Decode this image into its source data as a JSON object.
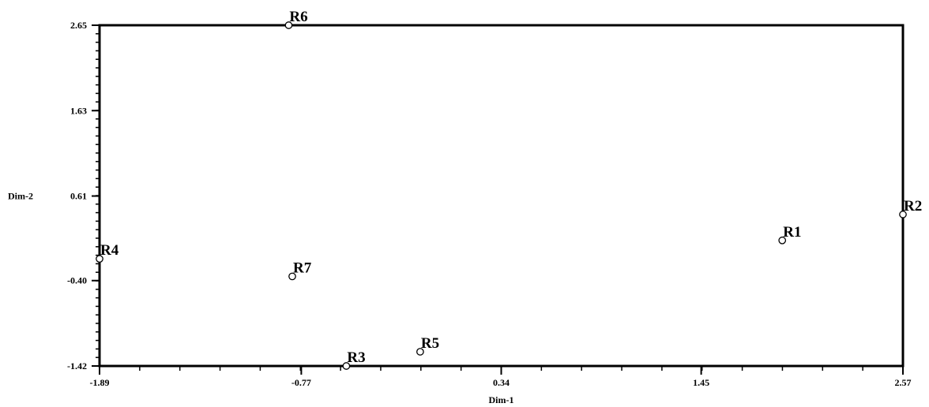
{
  "chart_data": {
    "type": "scatter",
    "title": "",
    "xlabel": "Dim-1",
    "ylabel": "Dim-2",
    "xlim": [
      -1.89,
      2.57
    ],
    "ylim": [
      -1.42,
      2.65
    ],
    "x_ticks": [
      -1.89,
      -0.77,
      0.34,
      1.45,
      2.57
    ],
    "x_tick_labels": [
      "-1.89",
      "-0.77",
      "0.34",
      "1.45",
      "2.57"
    ],
    "y_ticks": [
      2.65,
      1.63,
      0.61,
      -0.4,
      -1.42
    ],
    "y_tick_labels": [
      "2.65",
      "1.63",
      "0.61",
      "-0.40",
      "-1.42"
    ],
    "grid": false,
    "legend": "none",
    "point_color": "#ffffff",
    "axis_color": "#000000",
    "points": [
      {
        "label": "R1",
        "x": 1.9,
        "y": 0.08
      },
      {
        "label": "R2",
        "x": 2.57,
        "y": 0.39
      },
      {
        "label": "R3",
        "x": -0.52,
        "y": -1.42
      },
      {
        "label": "R4",
        "x": -1.89,
        "y": -0.14
      },
      {
        "label": "R5",
        "x": -0.11,
        "y": -1.25
      },
      {
        "label": "R6",
        "x": -0.84,
        "y": 2.65
      },
      {
        "label": "R7",
        "x": -0.82,
        "y": -0.35
      }
    ]
  }
}
